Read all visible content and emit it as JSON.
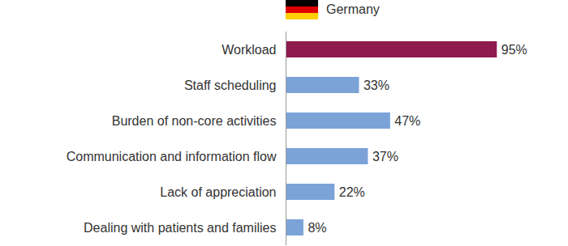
{
  "chart_data": {
    "type": "bar",
    "orientation": "horizontal",
    "title": "Germany",
    "categories": [
      "Workload",
      "Staff scheduling",
      "Burden of non-core activities",
      "Communication and information flow",
      "Lack of appreciation",
      "Dealing with patients and families"
    ],
    "values": [
      95,
      33,
      47,
      37,
      22,
      8
    ],
    "value_labels": [
      "95%",
      "33%",
      "47%",
      "37%",
      "22%",
      "8%"
    ],
    "colors": [
      "#8e1a4e",
      "#7ba3d8",
      "#7ba3d8",
      "#7ba3d8",
      "#7ba3d8",
      "#7ba3d8"
    ],
    "xlim": [
      0,
      100
    ],
    "data_labels": true,
    "tick_labels": "y",
    "grid": false
  }
}
